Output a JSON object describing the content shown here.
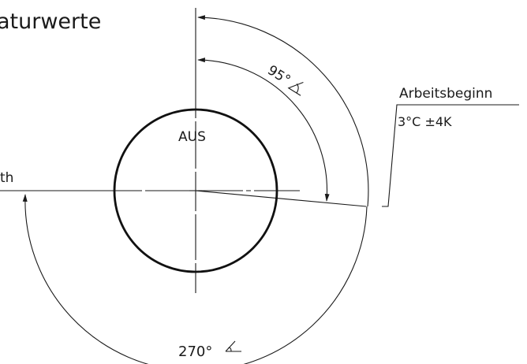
{
  "title_fragment": "aturwerte",
  "center_label": "AUS",
  "left_label_fragment": "th",
  "angle_95_label": "95°",
  "angle_270_label": "270°",
  "work_start": {
    "title": "Arbeitsbeginn",
    "value": "3°C  ±4K"
  },
  "symbols": {
    "angle": "angle-symbol"
  },
  "colors": {
    "line": "#1a1a1a",
    "background": "#ffffff"
  }
}
